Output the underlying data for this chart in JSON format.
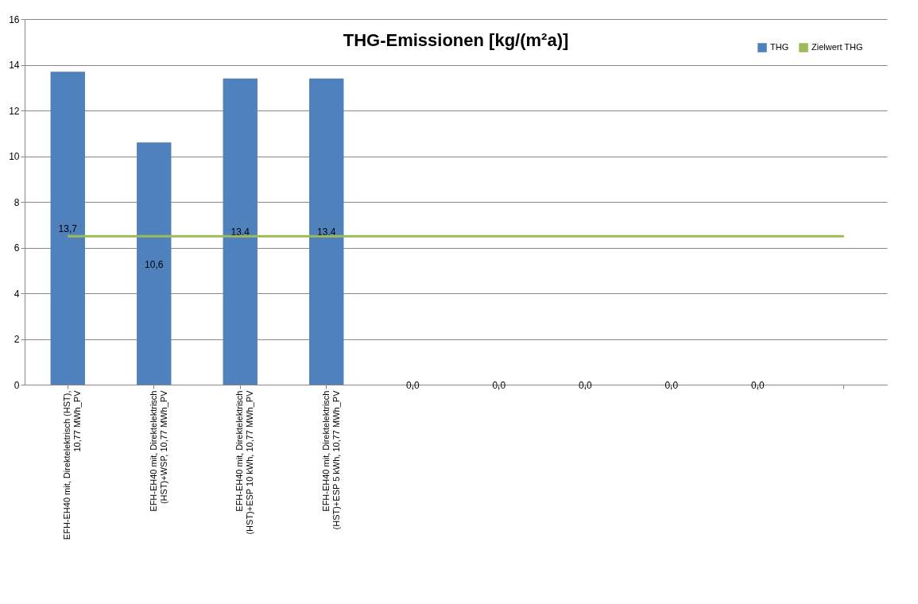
{
  "chart_data": {
    "type": "bar",
    "title": "THG-Emissionen [kg/(m²a)]",
    "categories": [
      "EFH-EH40 mit, Direktelektrisch (HST), 10,77 MWh_PV",
      "EFH-EH40 mit, Direktelektrisch (HST)+WSP, 10,77 MWh_PV",
      "EFH-EH40 mit, Direktelektrisch (HST)+ESP 10 kWh, 10,77 MWh_PV",
      "EFH-EH40 mit, Direktelektrisch (HST)+ESP 5 kWh, 10,77 MWh_PV",
      null,
      null,
      null,
      null,
      null,
      null
    ],
    "series": [
      {
        "name": "THG",
        "color": "#4f81bd",
        "values": [
          13.7,
          10.6,
          13.4,
          13.4,
          0,
          0,
          0,
          0,
          0,
          null
        ],
        "value_labels": [
          "13,7",
          "10,6",
          "13,4",
          "13,4",
          "0,0",
          "0,0",
          "0,0",
          "0,0",
          "0,0",
          null
        ]
      },
      {
        "name": "Zielwert THG",
        "type": "line",
        "color": "#9bbb59",
        "values": [
          6.5,
          6.5,
          6.5,
          6.5,
          6.5,
          6.5,
          6.5,
          6.5,
          6.5,
          6.5
        ]
      }
    ],
    "ylim": [
      0,
      16
    ],
    "yticks": [
      0,
      2,
      4,
      6,
      8,
      10,
      12,
      14,
      16
    ],
    "grid": "y",
    "legend": "top right"
  }
}
